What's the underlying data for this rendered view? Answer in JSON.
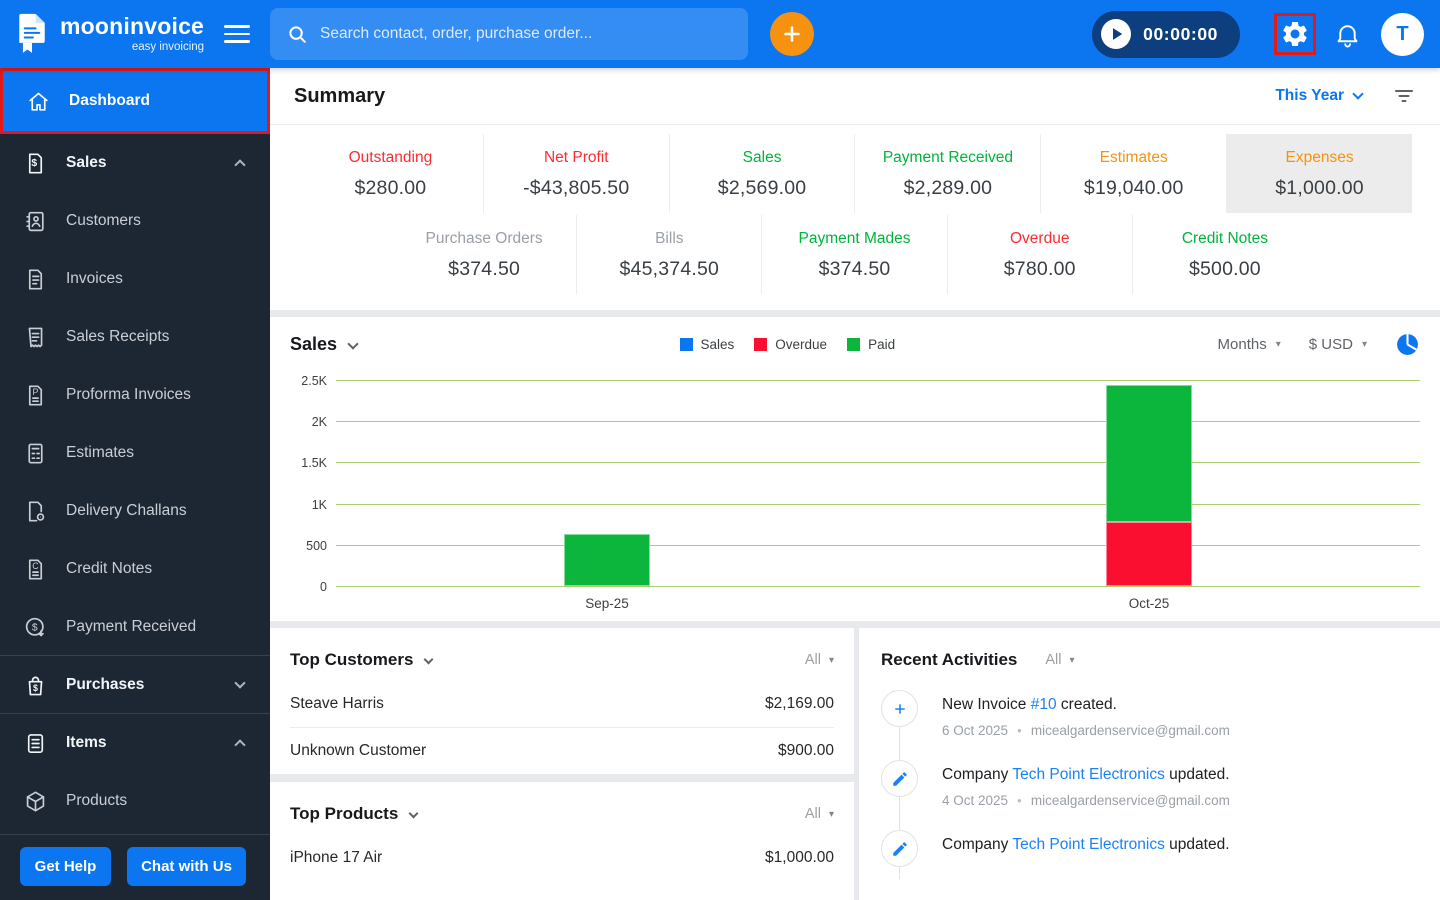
{
  "annotation": {
    "color": "#e01a1a",
    "highlighted": [
      "sidebar-item-dashboard",
      "settings-button"
    ]
  },
  "topbar": {
    "brand": {
      "name": "mooninvoice",
      "tagline": "easy invoicing"
    },
    "search_placeholder": "Search contact, order, purchase order...",
    "timer": "00:00:00",
    "avatar_initial": "T"
  },
  "sidebar": {
    "items": [
      {
        "label": "Dashboard",
        "icon": "home",
        "active": true,
        "annotated": true
      },
      {
        "label": "Sales",
        "icon": "sales",
        "chevron": "up",
        "bold": true
      },
      {
        "label": "Customers",
        "icon": "customers"
      },
      {
        "label": "Invoices",
        "icon": "invoices"
      },
      {
        "label": "Sales Receipts",
        "icon": "receipt"
      },
      {
        "label": "Proforma Invoices",
        "icon": "proforma"
      },
      {
        "label": "Estimates",
        "icon": "estimates"
      },
      {
        "label": "Delivery Challans",
        "icon": "challan"
      },
      {
        "label": "Credit Notes",
        "icon": "credit-note"
      },
      {
        "label": "Payment Received",
        "icon": "payment-received"
      },
      {
        "label": "Purchases",
        "icon": "purchases",
        "chevron": "down",
        "bold": true,
        "divider_before": true
      },
      {
        "label": "Items",
        "icon": "items",
        "chevron": "up",
        "bold": true,
        "divider_before": true
      },
      {
        "label": "Products",
        "icon": "products"
      }
    ],
    "get_help_label": "Get Help",
    "chat_label": "Chat with Us"
  },
  "summary": {
    "title": "Summary",
    "period_label": "This Year",
    "row1": [
      {
        "label": "Outstanding",
        "value": "$280.00",
        "color": "red"
      },
      {
        "label": "Net Profit",
        "value": "-$43,805.50",
        "color": "red"
      },
      {
        "label": "Sales",
        "value": "$2,569.00",
        "color": "green"
      },
      {
        "label": "Payment Received",
        "value": "$2,289.00",
        "color": "green"
      },
      {
        "label": "Estimates",
        "value": "$19,040.00",
        "color": "orange"
      },
      {
        "label": "Expenses",
        "value": "$1,000.00",
        "color": "orange",
        "selected": true
      }
    ],
    "row2": [
      {
        "label": "Purchase Orders",
        "value": "$374.50",
        "color": "gray"
      },
      {
        "label": "Bills",
        "value": "$45,374.50",
        "color": "gray"
      },
      {
        "label": "Payment Mades",
        "value": "$374.50",
        "color": "green"
      },
      {
        "label": "Overdue",
        "value": "$780.00",
        "color": "red"
      },
      {
        "label": "Credit Notes",
        "value": "$500.00",
        "color": "green"
      }
    ]
  },
  "chart_data": {
    "type": "bar",
    "stacked": true,
    "title": "Sales",
    "categories": [
      "Sep-25",
      "Oct-25"
    ],
    "series": [
      {
        "name": "Overdue",
        "color": "#fa0f31",
        "values": [
          0,
          780
        ]
      },
      {
        "name": "Paid",
        "color": "#0cb53b",
        "values": [
          630,
          1660
        ]
      }
    ],
    "legend": [
      {
        "name": "Sales",
        "color": "#0b76f0"
      },
      {
        "name": "Overdue",
        "color": "#fa0f31"
      },
      {
        "name": "Paid",
        "color": "#0cb53b"
      }
    ],
    "ylim": [
      0,
      2500
    ],
    "yticks": [
      {
        "value": 0,
        "label": "0"
      },
      {
        "value": 500,
        "label": "500"
      },
      {
        "value": 1000,
        "label": "1K"
      },
      {
        "value": 1500,
        "label": "1.5K"
      },
      {
        "value": 2000,
        "label": "2K"
      },
      {
        "value": 2500,
        "label": "2.5K"
      }
    ],
    "grid": true,
    "legend_position": "top",
    "interval_selector": "Months",
    "currency_selector": "$ USD"
  },
  "top_customers": {
    "title": "Top Customers",
    "filter_label": "All",
    "rows": [
      {
        "name": "Steave Harris",
        "amount": "$2,169.00"
      },
      {
        "name": "Unknown Customer",
        "amount": "$900.00"
      }
    ]
  },
  "top_products": {
    "title": "Top Products",
    "filter_label": "All",
    "rows": [
      {
        "name": "iPhone 17 Air",
        "amount": "$1,000.00"
      }
    ]
  },
  "recent_activities": {
    "title": "Recent Activities",
    "filter_label": "All",
    "items": [
      {
        "icon": "plus",
        "text_before": "New Invoice ",
        "link_text": "#10",
        "text_after": " created.",
        "date": "6 Oct 2025",
        "email": "micealgardenservice@gmail.com"
      },
      {
        "icon": "pencil",
        "text_before": "Company ",
        "link_text": "Tech Point Electronics",
        "text_after": " updated.",
        "date": "4 Oct 2025",
        "email": "micealgardenservice@gmail.com"
      },
      {
        "icon": "pencil",
        "text_before": "Company ",
        "link_text": "Tech Point Electronics",
        "text_after": " updated.",
        "date": "",
        "email": ""
      }
    ]
  }
}
